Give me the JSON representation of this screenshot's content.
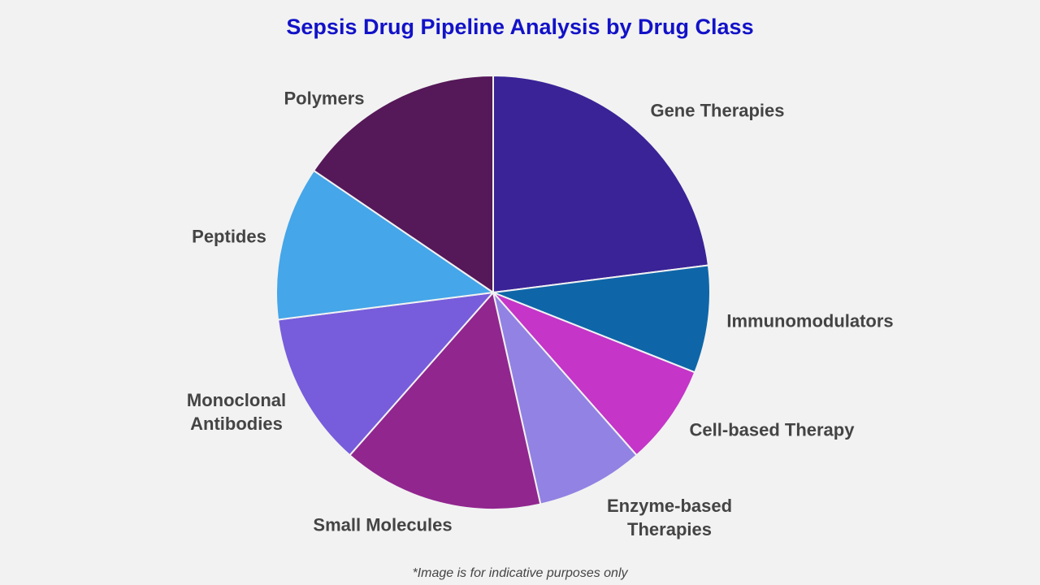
{
  "chart_data": {
    "type": "pie",
    "title": "Sepsis Drug Pipeline Analysis by Drug Class",
    "categories": [
      "Gene Therapies",
      "Immunomodulators",
      "Cell-based Therapy",
      "Enzyme-based Therapies",
      "Small Molecules",
      "Monoclonal Antibodies",
      "Peptides",
      "Polymers"
    ],
    "values": [
      23,
      8,
      7.5,
      8,
      15,
      11.5,
      11.5,
      15.5
    ],
    "colors": [
      "#3a2396",
      "#0e66a8",
      "#c435c8",
      "#9282e3",
      "#91268f",
      "#775ddb",
      "#45a6e9",
      "#551858"
    ],
    "footnote": "*Image is for indicative purposes only"
  }
}
